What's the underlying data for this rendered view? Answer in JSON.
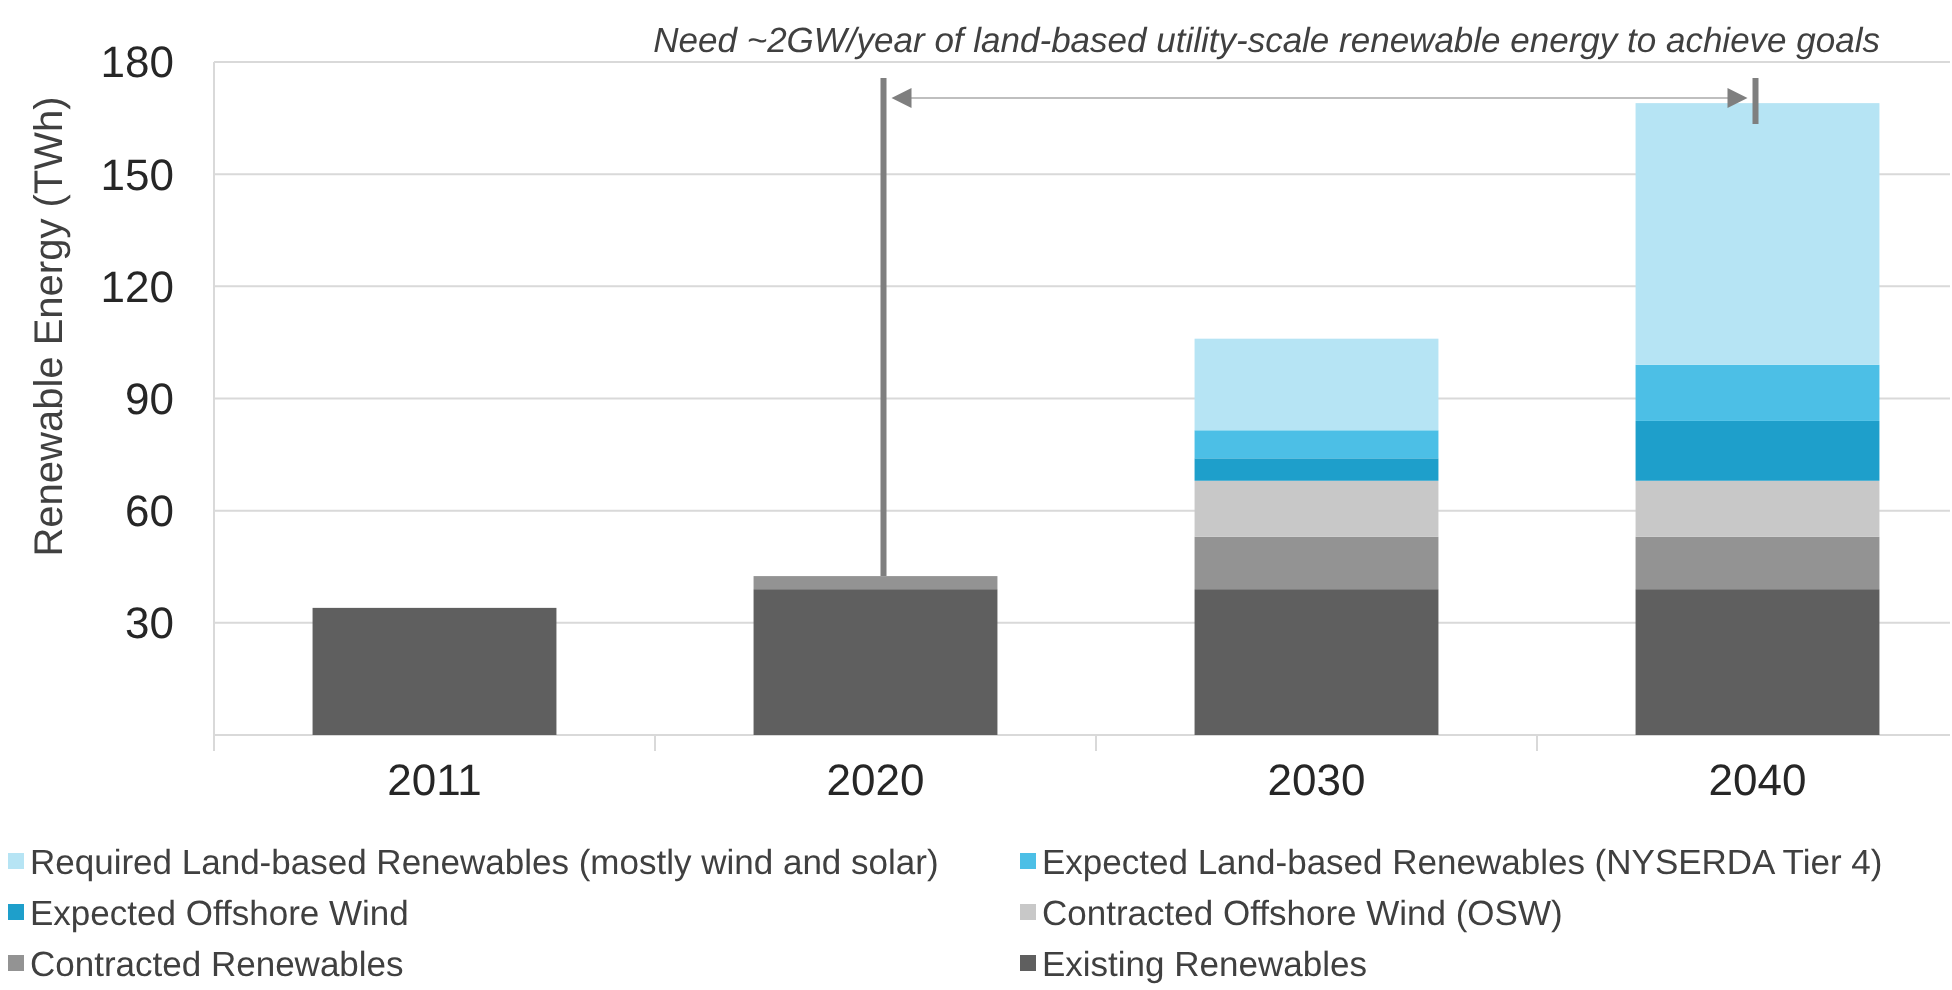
{
  "chart_data": {
    "type": "bar",
    "stacked": true,
    "ylabel": "Renewable Energy (TWh)",
    "annotations": [
      {
        "text": "Need ~2GW/year of land-based utility-scale renewable energy to achieve goals",
        "x": "2020",
        "y": 42.5
      }
    ],
    "categories": [
      "2011",
      "2020",
      "2030",
      "2040"
    ],
    "series": [
      {
        "name": "Existing Renewables",
        "color": "#5f5f5f",
        "values": [
          34,
          39,
          39,
          39
        ]
      },
      {
        "name": "Contracted Renewables",
        "color": "#939393",
        "values": [
          null,
          3.5,
          14,
          14
        ]
      },
      {
        "name": "Contracted Offshore Wind (OSW)",
        "color": "#c8c8c8",
        "values": [
          null,
          null,
          15,
          15
        ]
      },
      {
        "name": "Expected Offshore Wind",
        "color": "#1e9fcb",
        "values": [
          null,
          null,
          6,
          16
        ]
      },
      {
        "name": "Expected Land-based Renewables (NYSERDA Tier 4)",
        "color": "#4cbfe6",
        "values": [
          null,
          null,
          7.5,
          15
        ]
      },
      {
        "name": "Required Land-based Renewables (mostly wind and solar)",
        "color": "#b6e4f4",
        "values": [
          null,
          null,
          24.5,
          70
        ]
      }
    ],
    "ylim": [
      0,
      180
    ],
    "yticks": [
      30,
      60,
      90,
      120,
      150,
      180
    ],
    "grid": "y",
    "legend": "bottom"
  }
}
